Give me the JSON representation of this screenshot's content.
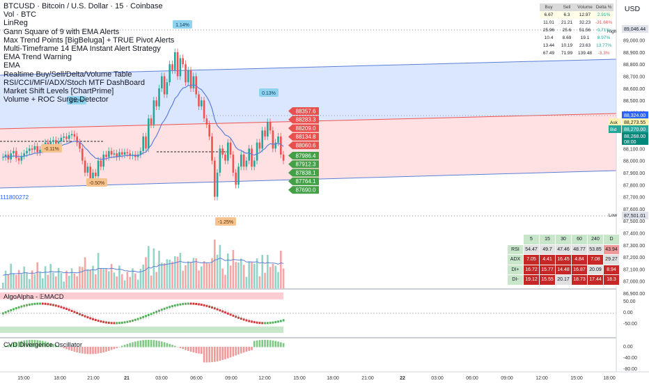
{
  "symbol_title": "BTCUSD · Bitcoin / U.S. Dollar · 15 · Coinbase",
  "indicators": [
    "Vol · BTC",
    "LinReg",
    "Gann Square of 9 with EMA Alerts",
    "Max Trend Points [BigBeluga] + TRUE Pivot Alerts",
    "Multi-Timeframe 14 EMA Instant Alert Strategy",
    "EMA Trend Warning",
    "EMA",
    "Realtime Buy/Sell/Delta/Volume Table",
    "RSI/CCI/MFI/ADX/Stoch MTF DashBoard",
    "Market Shift Levels [ChartPrime]",
    "Volume + ROC Surge Detector"
  ],
  "currency_button": "USD",
  "left_value_label": "111800272",
  "price_axis": {
    "ticks": [
      "89,100.00",
      "89,000.00",
      "88,900.00",
      "88,800.00",
      "88,700.00",
      "88,600.00",
      "88,500.00",
      "88,400.00",
      "88,300.00",
      "88,200.00",
      "88,100.00",
      "88,000.00",
      "87,900.00",
      "87,800.00",
      "87,700.00",
      "87,600.00",
      "87,500.00",
      "87,400.00",
      "87,300.00",
      "87,200.00",
      "87,100.00",
      "87,000.00",
      "86,900.00"
    ],
    "high_price": "89,046.44",
    "high_label": "High",
    "low_price": "87,501.01",
    "low_label": "Low",
    "ask_label": "Ask",
    "ask_price": "88,273.55",
    "bid_label": "Bid",
    "bid_price": "88,270.00",
    "red_tag": "88,324.00",
    "last_price": "88,268.00",
    "countdown": "08:00",
    "macd_ticks": [
      "50.00",
      "0.00",
      "-50.00"
    ],
    "cvd_ticks": [
      "0.00",
      "-40.00",
      "-80.00"
    ]
  },
  "time_axis": [
    "15:00",
    "18:00",
    "21:00",
    "21",
    "03:00",
    "06:00",
    "09:00",
    "12:00",
    "15:00",
    "18:00",
    "21:00",
    "22",
    "03:00",
    "06:00",
    "09:00",
    "12:00",
    "15:00",
    "18:00"
  ],
  "pivot_labels": {
    "p1": "1.14%",
    "p2": "0.22%",
    "p3": "0.13%",
    "n1": "-0.11%",
    "n2": "-0.50%",
    "n3": "-1.25%"
  },
  "gann_levels": {
    "red": [
      "88357.6",
      "88283.3",
      "88209.0",
      "88134.8",
      "88060.6"
    ],
    "green": [
      "87986.4",
      "87912.3",
      "87838.1",
      "87764.1",
      "87690.0"
    ]
  },
  "buy_sell_table": {
    "headers": [
      "Buy",
      "Sell",
      "Volume",
      "Delta %"
    ],
    "rows": [
      [
        "6.67",
        "6.3",
        "12.97",
        "2.91%"
      ],
      [
        "11.01",
        "21.21",
        "32.23",
        "-31.66%"
      ],
      [
        "25.96",
        "25.6",
        "51.56",
        "0.71%"
      ],
      [
        "10.4",
        "8.69",
        "19.1",
        "8.97%"
      ],
      [
        "13.44",
        "10.19",
        "23.63",
        "13.77%"
      ],
      [
        "67.49",
        "71.99",
        "139.48",
        "-3.3%"
      ]
    ]
  },
  "mtf_dashboard": {
    "timeframes": [
      "5",
      "15",
      "30",
      "60",
      "240",
      "D"
    ],
    "rows": [
      {
        "label": "RSI",
        "values": [
          "54.47",
          "49.7",
          "47.46",
          "48.77",
          "53.85",
          "43.94"
        ]
      },
      {
        "label": "ADX",
        "values": [
          "7.05",
          "4.41",
          "16.45",
          "4.84",
          "7.08",
          "29.27"
        ]
      },
      {
        "label": "DI+",
        "values": [
          "16.72",
          "15.77",
          "14.48",
          "16.87",
          "20.09",
          "8.94"
        ]
      },
      {
        "label": "DI-",
        "values": [
          "19.12",
          "15.55",
          "20.17",
          "18.73",
          "17.44",
          "18.3"
        ]
      }
    ],
    "colors": {
      "green": "#c8e6c9",
      "red": "#c62828",
      "light": "#e0e0e0",
      "pink": "#ef9a9a"
    }
  },
  "pane_titles": {
    "macd": "AlgoAlpha - 𝔼MACD",
    "cvd": "CVD Divergence Oscillator"
  },
  "colors": {
    "up": "#26a69a",
    "down": "#ef5350",
    "channel_blue": "#cfe0ff",
    "channel_red": "#ffd9dc",
    "ema": "#5b7fd8"
  }
}
